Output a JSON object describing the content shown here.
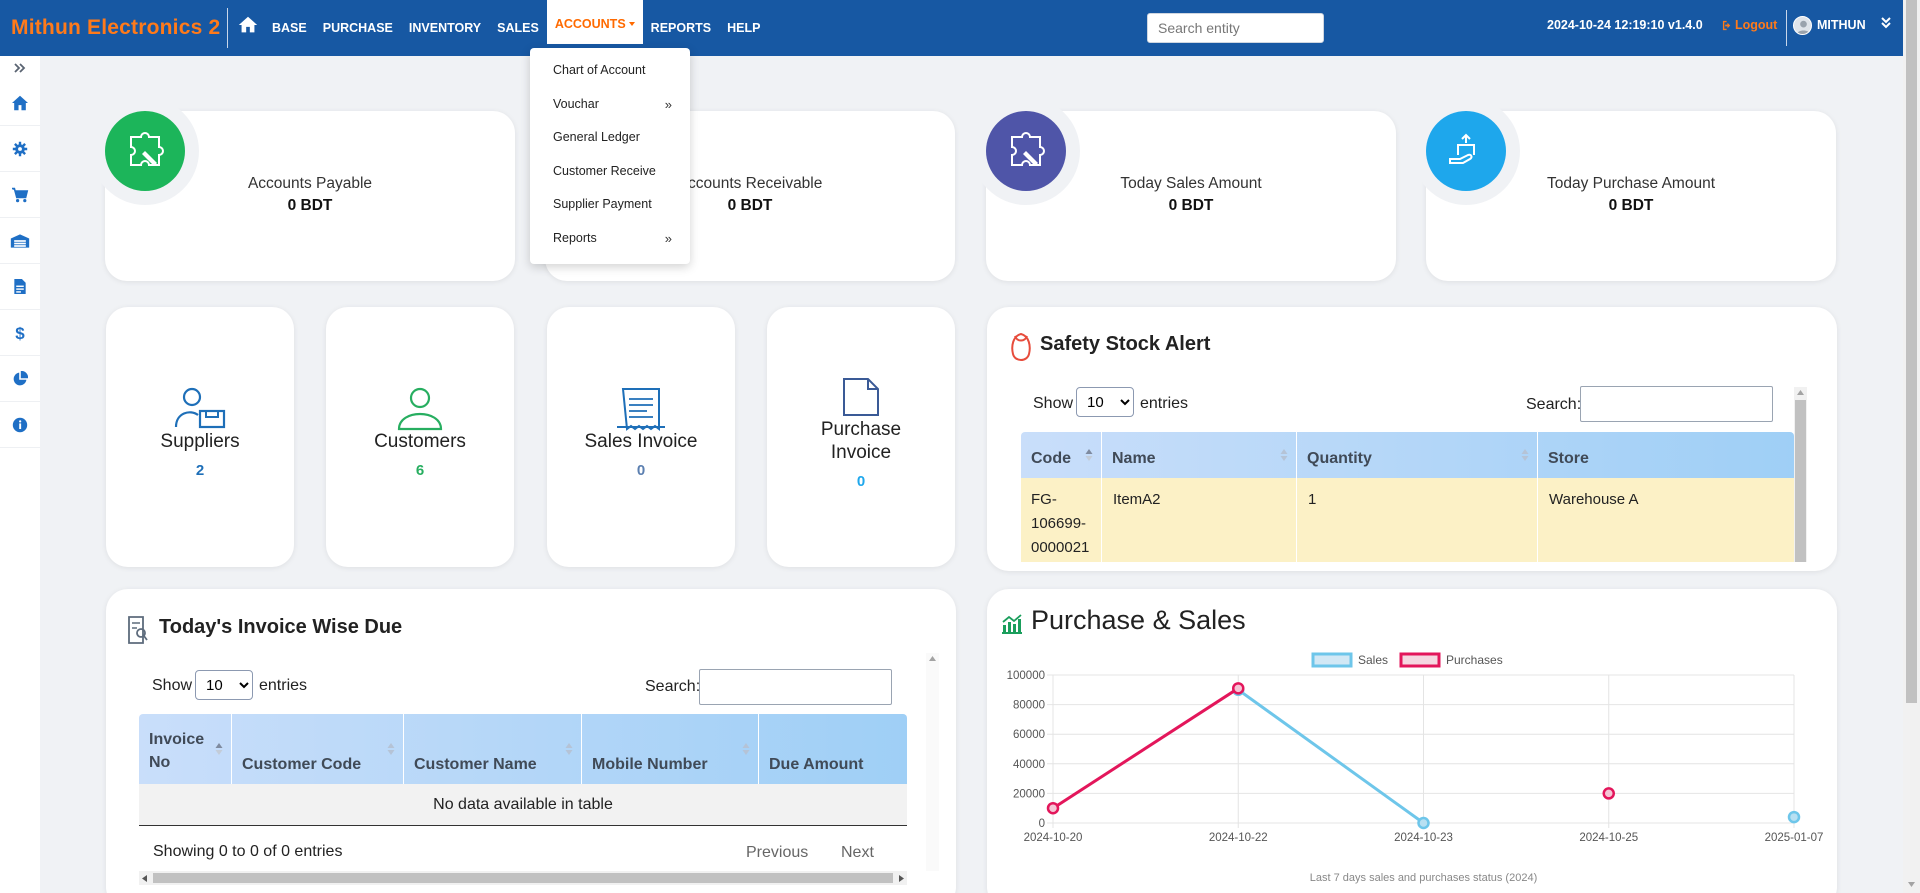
{
  "brand": "Mithun Electronics 2",
  "nav": {
    "items": [
      "BASE",
      "PURCHASE",
      "INVENTORY",
      "SALES",
      "ACCOUNTS",
      "REPORTS",
      "HELP"
    ],
    "active": "ACCOUNTS",
    "search_placeholder": "Search entity",
    "datetime_version": "2024-10-24 12:19:10 v1.4.0",
    "logout": "Logout",
    "user": "MITHUN"
  },
  "accounts_menu": {
    "items": [
      {
        "label": "Chart of Account",
        "submenu": ""
      },
      {
        "label": "Vouchar",
        "submenu": "»"
      },
      {
        "label": "General Ledger",
        "submenu": ""
      },
      {
        "label": "Customer Receive",
        "submenu": ""
      },
      {
        "label": "Supplier Payment",
        "submenu": ""
      },
      {
        "label": "Reports",
        "submenu": "»"
      }
    ]
  },
  "sidebar": {
    "icons": [
      "expand-icon",
      "home-icon",
      "gear-icon",
      "cart-icon",
      "warehouse-icon",
      "invoice-icon",
      "dollar-icon",
      "pie-chart-icon",
      "info-icon"
    ]
  },
  "stats": [
    {
      "label": "Accounts Payable",
      "value": "0 BDT",
      "color": "#1cb55a"
    },
    {
      "label": "Accounts Receivable",
      "value": "0 BDT",
      "color": "#1cb55a"
    },
    {
      "label": "Today Sales Amount",
      "value": "0 BDT",
      "color": "#4f55a8"
    },
    {
      "label": "Today Purchase Amount",
      "value": "0 BDT",
      "color": "#1ea7ec"
    }
  ],
  "summary": [
    {
      "label": "Suppliers",
      "count": "2",
      "color": "#1e6fb8"
    },
    {
      "label": "Customers",
      "count": "6",
      "color": "#27ae60"
    },
    {
      "label": "Sales Invoice",
      "count": "0",
      "color": "#5b7fb0"
    },
    {
      "label1": "Purchase",
      "label2": "Invoice",
      "count": "0",
      "color": "#1ea7ec"
    }
  ],
  "safety_stock": {
    "title": "Safety Stock Alert",
    "show": "Show",
    "entries_value": "10",
    "entries": "entries",
    "search": "Search:",
    "columns": [
      "Code",
      "Name",
      "Quantity",
      "Store"
    ],
    "rows": [
      {
        "code": [
          "FG-",
          "106699-",
          "0000021"
        ],
        "name": "ItemA2",
        "quantity": "1",
        "store": "Warehouse A"
      }
    ]
  },
  "invoice_due": {
    "title": "Today's Invoice Wise Due",
    "show": "Show",
    "entries_value": "10",
    "entries": "entries",
    "search": "Search:",
    "columns": [
      [
        "Invoice",
        "No"
      ],
      [
        "Customer Code"
      ],
      [
        "Customer Name"
      ],
      [
        "Mobile Number"
      ],
      [
        "Due Amount"
      ]
    ],
    "empty": "No data available in table",
    "info": "Showing 0 to 0 of 0 entries",
    "prev": "Previous",
    "next": "Next"
  },
  "chart_data": {
    "type": "line",
    "title": "Purchase & Sales",
    "x": [
      "2024-10-20",
      "2024-10-22",
      "2024-10-23",
      "2024-10-25",
      "2025-01-07"
    ],
    "series": [
      {
        "name": "Sales",
        "values": [
          null,
          90000,
          0,
          null,
          4000
        ],
        "color": "#6ec6ea"
      },
      {
        "name": "Purchases",
        "values": [
          10000,
          91000,
          null,
          20000,
          null
        ],
        "color": "#e3165b"
      }
    ],
    "ylim": [
      0,
      100000
    ],
    "yticks": [
      0,
      20000,
      40000,
      60000,
      80000,
      100000
    ],
    "caption": "Last 7 days sales and purchases status (2024)",
    "legend": "top-center"
  }
}
